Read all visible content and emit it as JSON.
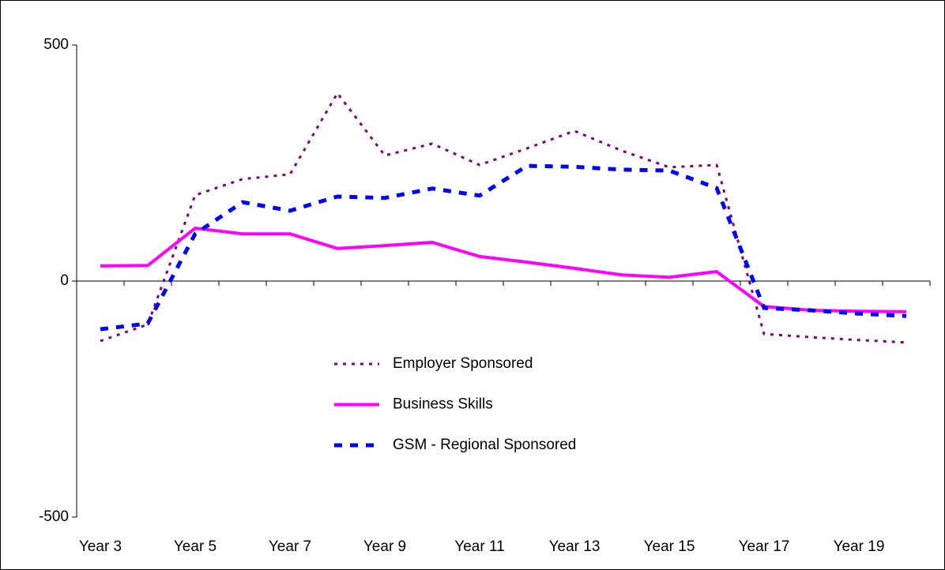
{
  "chart_data": {
    "type": "line",
    "categories": [
      "Year 3",
      null,
      "Year 5",
      null,
      "Year 7",
      null,
      "Year 9",
      null,
      "Year 11",
      null,
      "Year 13",
      null,
      "Year 15",
      null,
      "Year 17",
      null,
      "Year 19",
      null
    ],
    "series": [
      {
        "name": "Employer Sponsored",
        "color": "#800080",
        "dash": "dotted",
        "values": [
          -127,
          -92,
          182,
          216,
          226,
          398,
          266,
          291,
          246,
          281,
          318,
          276,
          241,
          246,
          -112,
          -119,
          -125,
          -130
        ]
      },
      {
        "name": "Business Skills",
        "color": "#ff00ff",
        "dash": "solid",
        "values": [
          32,
          33,
          112,
          100,
          100,
          69,
          75,
          82,
          52,
          40,
          27,
          13,
          8,
          20,
          -54,
          -62,
          -64,
          -65
        ]
      },
      {
        "name": "GSM - Regional Sponsored",
        "color": "#0000ff",
        "dash": "dashed",
        "values": [
          -102,
          -90,
          100,
          167,
          149,
          179,
          176,
          196,
          181,
          244,
          242,
          236,
          234,
          197,
          -57,
          -62,
          -69,
          -74
        ]
      }
    ],
    "ylim": [
      -500,
      500
    ],
    "yticks": [
      -500,
      0,
      500
    ],
    "grid": false,
    "legend": "center"
  }
}
